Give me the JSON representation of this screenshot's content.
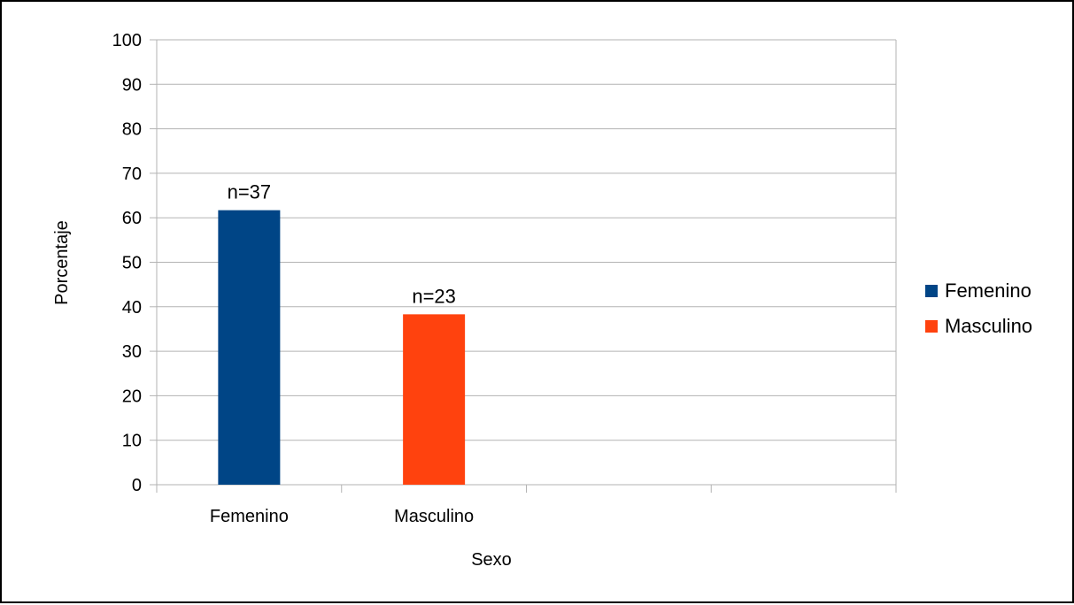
{
  "chart_data": {
    "type": "bar",
    "categories": [
      "Femenino",
      "Masculino",
      "",
      ""
    ],
    "series": [
      {
        "name": "Femenino",
        "values": [
          61.7,
          null,
          null,
          null
        ],
        "color": "#004586",
        "data_labels": [
          "n=37",
          "",
          "",
          ""
        ]
      },
      {
        "name": "Masculino",
        "values": [
          null,
          38.3,
          null,
          null
        ],
        "color": "#ff420e",
        "data_labels": [
          "",
          "n=23",
          "",
          ""
        ]
      }
    ],
    "xlabel": "Sexo",
    "ylabel": "Porcentaje",
    "ylim": [
      0,
      100
    ],
    "yticks": [
      0,
      10,
      20,
      30,
      40,
      50,
      60,
      70,
      80,
      90,
      100
    ],
    "grid": true,
    "legend_position": "right",
    "gridline_color": "#b3b3b3"
  }
}
